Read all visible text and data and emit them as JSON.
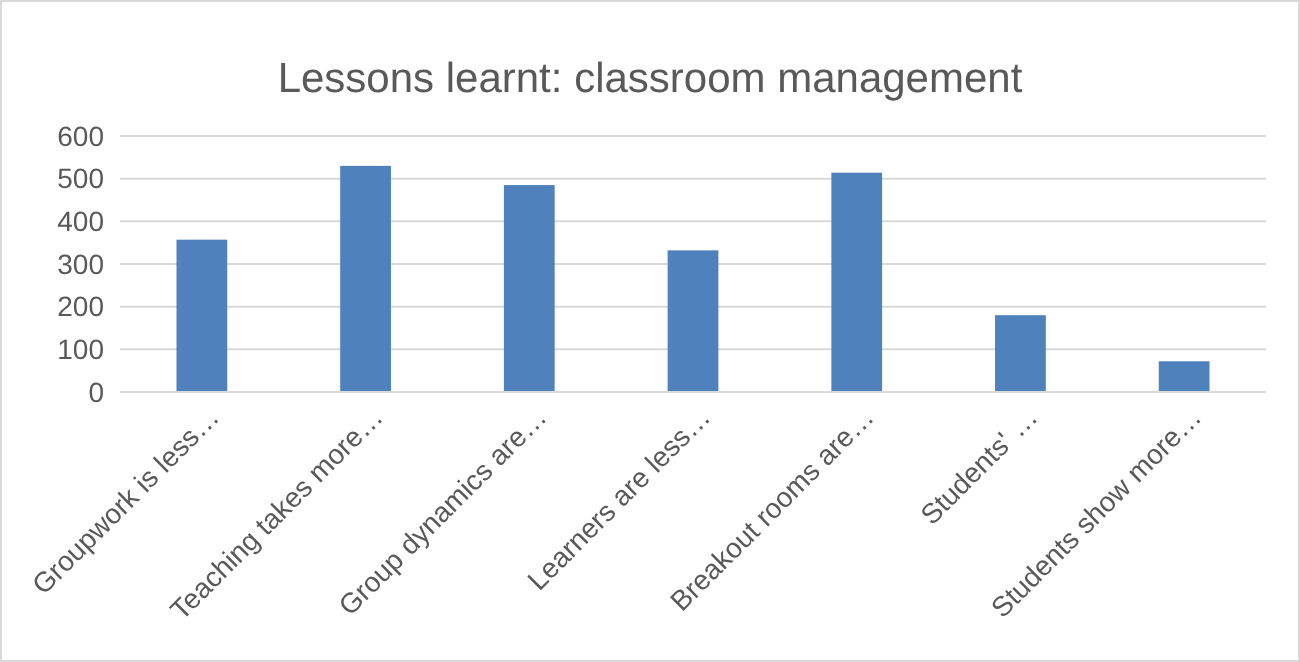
{
  "chart_data": {
    "type": "bar",
    "title": "Lessons learnt: classroom management",
    "categories": [
      "Groupwork is less…",
      "Teaching takes more…",
      "Group dynamics are…",
      "Learners are less…",
      "Breakout rooms are…",
      "Students' …",
      "Students show more…"
    ],
    "values": [
      357,
      530,
      485,
      332,
      514,
      180,
      72
    ],
    "color": "#4f81bd",
    "ylim": [
      0,
      600
    ],
    "yticks": [
      0,
      100,
      200,
      300,
      400,
      500,
      600
    ],
    "grid": "y"
  }
}
